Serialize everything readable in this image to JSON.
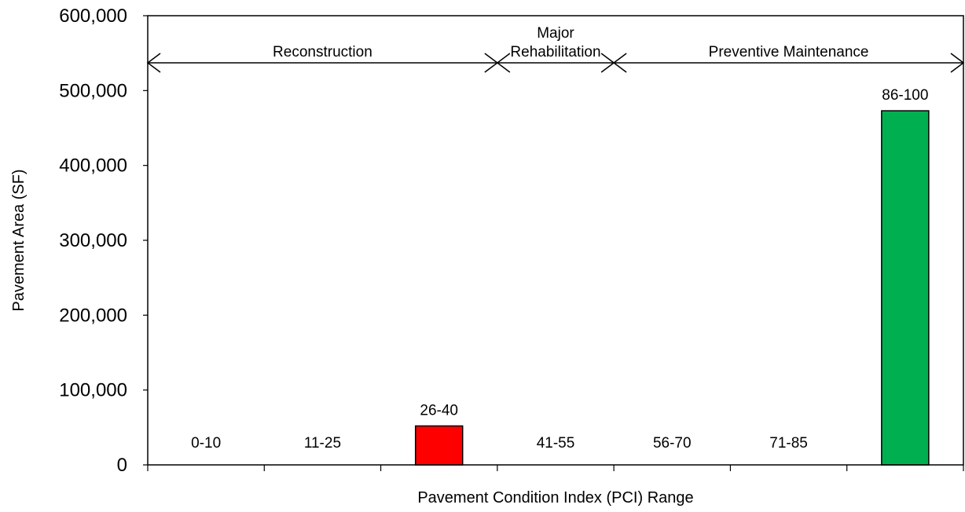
{
  "chart_data": {
    "type": "bar",
    "xlabel": "Pavement Condition Index (PCI) Range",
    "ylabel": "Pavement  Area (SF)",
    "ylim": [
      0,
      600000
    ],
    "yticks": [
      "0",
      "100,000",
      "200,000",
      "300,000",
      "400,000",
      "500,000",
      "600,000"
    ],
    "categories": [
      "0-10",
      "11-25",
      "26-40",
      "41-55",
      "56-70",
      "71-85",
      "86-100"
    ],
    "values": [
      0,
      0,
      52000,
      0,
      0,
      0,
      473000
    ],
    "bar_colors": [
      "#ff0000",
      "#ff0000",
      "#ff0000",
      "#ffc000",
      "#00b050",
      "#00b050",
      "#00b050"
    ],
    "zones": [
      {
        "label": "Reconstruction",
        "from": 0,
        "to": 3
      },
      {
        "label": "Major\nRehabilitation",
        "from": 3,
        "to": 4
      },
      {
        "label": "Preventive Maintenance",
        "from": 4,
        "to": 7
      }
    ],
    "grid": false,
    "legend": "none"
  }
}
